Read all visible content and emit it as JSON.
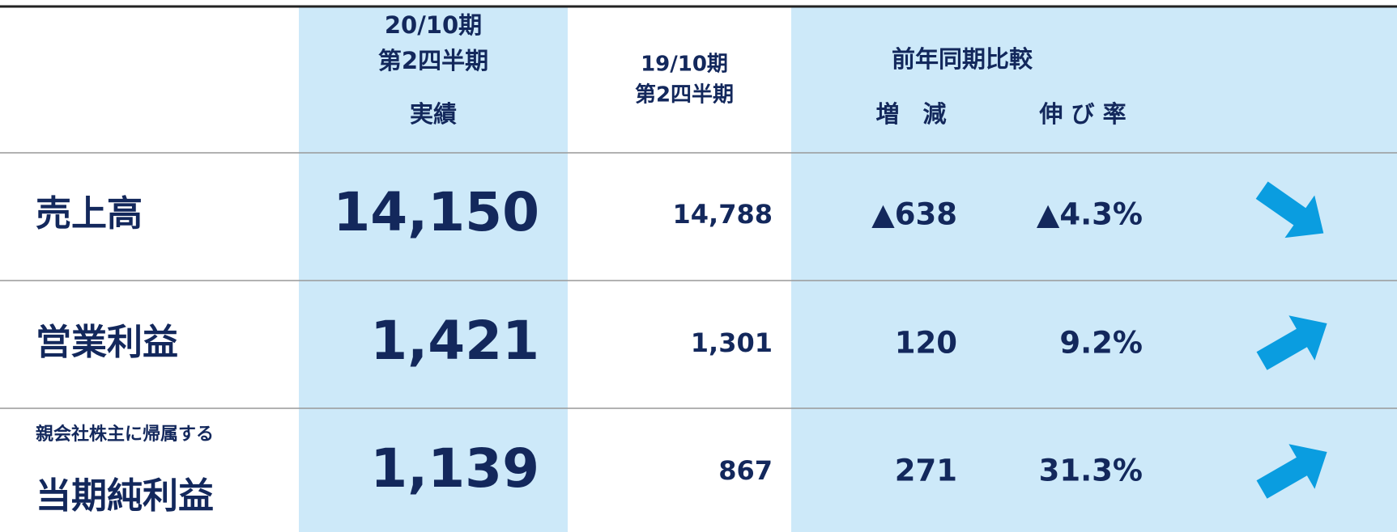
{
  "header": {
    "actual": [
      "20/10期",
      "第2四半期",
      "実績"
    ],
    "prior": [
      "19/10期",
      "第2四半期"
    ],
    "comparison": "前年同期比較",
    "change": "増　減",
    "rate": "伸 び 率"
  },
  "table": {
    "rows": [
      {
        "label": "売上高",
        "actual": "14,150",
        "prior": "14,788",
        "change": "▲638",
        "rate": "▲4.3%"
      },
      {
        "label": "営業利益",
        "actual": "1,421",
        "prior": "1,301",
        "change": "120",
        "rate": "9.2%"
      },
      {
        "sublabel": "親会社株主に帰属する",
        "label": "当期純利益",
        "actual": "1,139",
        "prior": "867",
        "change": "271",
        "rate": "31.3%"
      }
    ]
  }
}
